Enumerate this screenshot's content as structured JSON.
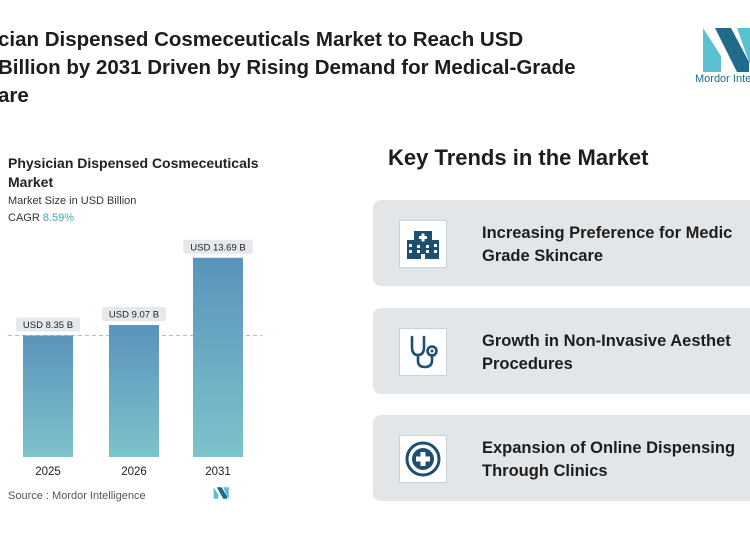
{
  "headline": [
    "cian Dispensed Cosmeceuticals Market to Reach USD",
    "Billion by 2031 Driven by Rising Demand for Medical-Grade",
    "are"
  ],
  "brand": {
    "logo_text": "Mordor Inte",
    "icon": "mordor-intelligence-logo-icon",
    "color": "#5bc0cf",
    "dark_color": "#1e6b8a"
  },
  "chart_header": {
    "title_line1": "Physician Dispensed Cosmeceuticals",
    "title_line2": "Market",
    "subtitle": "Market Size in USD Billion",
    "cagr_label": "CAGR",
    "cagr_value": "8.59%"
  },
  "chart_data": {
    "type": "bar",
    "categories": [
      "2025",
      "2026",
      "2031"
    ],
    "values": [
      8.35,
      9.07,
      13.69
    ],
    "data_labels": [
      "USD 8.35 B",
      "USD 9.07 B",
      "USD 13.69 B"
    ],
    "ylim": [
      0,
      14.5
    ],
    "reference_line": 8.35,
    "grid": false,
    "bar_color_top": "#5b93bb",
    "bar_color_bottom": "#7dc3cb"
  },
  "source": {
    "label": "Source :",
    "name": "Mordor Intelligence"
  },
  "trends": {
    "title": "Key Trends in the Market",
    "items": [
      {
        "icon": "hospital-icon",
        "line1": "Increasing Preference for Medic",
        "line2": "Grade Skincare"
      },
      {
        "icon": "stethoscope-icon",
        "line1": "Growth in Non-Invasive Aesthet",
        "line2": "Procedures"
      },
      {
        "icon": "medical-cross-icon",
        "line1": "Expansion of Online Dispensing",
        "line2": "Through Clinics"
      }
    ]
  }
}
